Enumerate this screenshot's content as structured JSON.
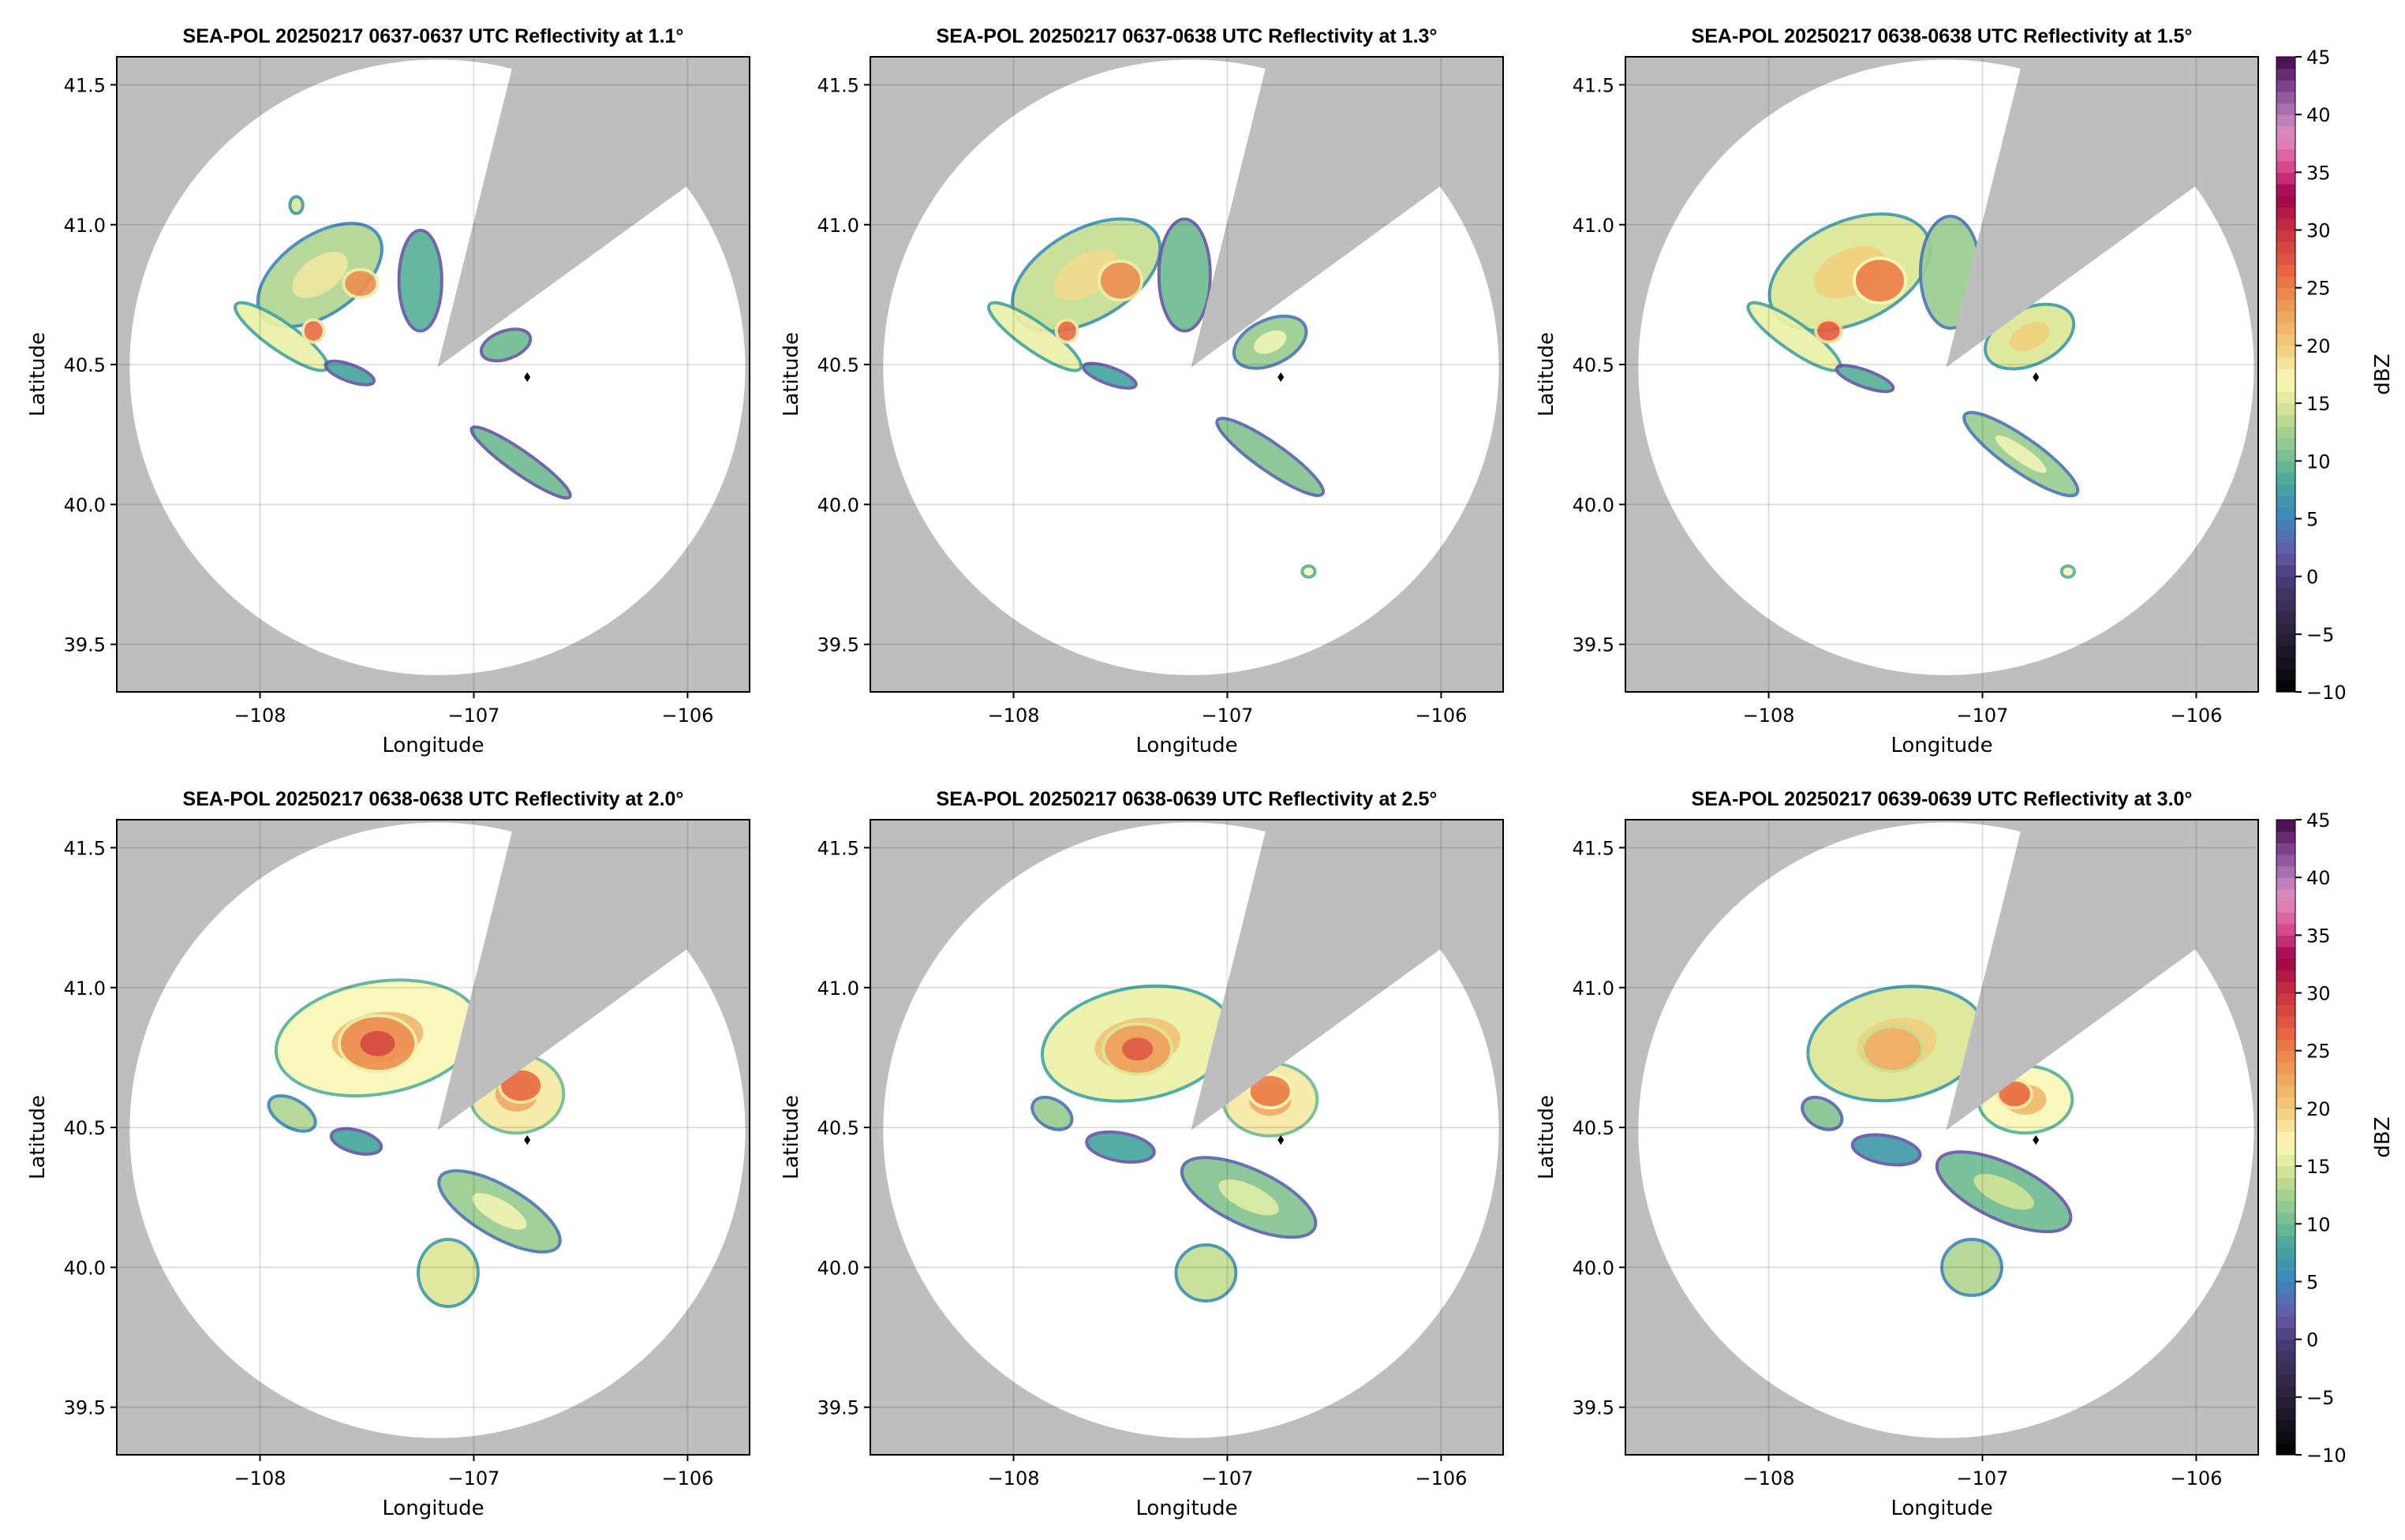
{
  "chart_data": {
    "type": "heatmap",
    "description_units": "reflectivity dBZ on lon/lat grid",
    "xlabel": "Longitude",
    "ylabel": "Latitude",
    "xlim": [
      -108.67,
      -105.71
    ],
    "ylim": [
      39.33,
      41.6
    ],
    "xticks": [
      -108,
      -107,
      -106
    ],
    "xtick_labels": [
      "−108",
      "−107",
      "−106"
    ],
    "yticks": [
      39.5,
      40.0,
      40.5,
      41.0,
      41.5
    ],
    "ytick_labels": [
      "39.5",
      "40.0",
      "40.5",
      "41.0",
      "41.5"
    ],
    "grid": true,
    "radar_center": [
      -107.17,
      40.49
    ],
    "max_range_deg_lat": 1.1,
    "blocked_azimuths_deg": [
      14,
      54
    ],
    "marker": [
      -106.75,
      40.455
    ],
    "colorbar": {
      "label": "dBZ",
      "range": [
        -10,
        45
      ],
      "ticks": [
        -10,
        -5,
        0,
        5,
        10,
        15,
        20,
        25,
        30,
        35,
        40,
        45
      ],
      "tick_labels": [
        "−10",
        "−5",
        "0",
        "5",
        "10",
        "15",
        "20",
        "25",
        "30",
        "35",
        "40",
        "45"
      ],
      "stops": [
        [
          -10,
          "#000000"
        ],
        [
          -5,
          "#2a2038"
        ],
        [
          0,
          "#4a3d78"
        ],
        [
          2,
          "#6658a8"
        ],
        [
          5,
          "#3d86bc"
        ],
        [
          8,
          "#45a59e"
        ],
        [
          10,
          "#6fbc92"
        ],
        [
          13,
          "#b0d590"
        ],
        [
          15,
          "#dce895"
        ],
        [
          17,
          "#faf8b8"
        ],
        [
          20,
          "#f2cc78"
        ],
        [
          23,
          "#eea05c"
        ],
        [
          25,
          "#ec804a"
        ],
        [
          27,
          "#e55c42"
        ],
        [
          30,
          "#c9303e"
        ],
        [
          33,
          "#a0004a"
        ],
        [
          35,
          "#d33c88"
        ],
        [
          38,
          "#e48cbd"
        ],
        [
          40,
          "#b27ab8"
        ],
        [
          42,
          "#8a4c98"
        ],
        [
          45,
          "#430848"
        ]
      ]
    },
    "panels": [
      {
        "title": "SEA-POL 20250217 0637-0637 UTC Reflectivity at 1.1°",
        "elevation": 1.1,
        "echoes": [
          [
            -107.72,
            40.82,
            0.33,
            0.14,
            -35,
            13
          ],
          [
            -107.53,
            40.79,
            0.08,
            0.05,
            0,
            24
          ],
          [
            -107.9,
            40.6,
            0.26,
            0.05,
            35,
            16
          ],
          [
            -107.75,
            40.62,
            0.05,
            0.04,
            0,
            26
          ],
          [
            -107.58,
            40.47,
            0.12,
            0.03,
            20,
            8
          ],
          [
            -107.25,
            40.8,
            0.1,
            0.18,
            0,
            9
          ],
          [
            -106.85,
            40.57,
            0.12,
            0.05,
            -20,
            10
          ],
          [
            -106.78,
            40.15,
            0.28,
            0.04,
            35,
            10
          ],
          [
            -107.83,
            41.07,
            0.03,
            0.03,
            0,
            15
          ]
        ]
      },
      {
        "title": "SEA-POL 20250217 0637-0638 UTC Reflectivity at 1.3°",
        "elevation": 1.3,
        "echoes": [
          [
            -107.66,
            40.82,
            0.38,
            0.16,
            -30,
            14
          ],
          [
            -107.5,
            40.8,
            0.1,
            0.07,
            0,
            24
          ],
          [
            -107.9,
            40.6,
            0.26,
            0.05,
            35,
            16
          ],
          [
            -107.75,
            40.62,
            0.05,
            0.04,
            0,
            26
          ],
          [
            -107.55,
            40.46,
            0.13,
            0.03,
            20,
            8
          ],
          [
            -107.2,
            40.82,
            0.12,
            0.2,
            0,
            10
          ],
          [
            -106.8,
            40.58,
            0.18,
            0.08,
            -25,
            12
          ],
          [
            -106.8,
            40.17,
            0.3,
            0.05,
            35,
            11
          ],
          [
            -106.62,
            39.76,
            0.03,
            0.02,
            0,
            17
          ]
        ]
      },
      {
        "title": "SEA-POL 20250217 0638-0638 UTC Reflectivity at 1.5°",
        "elevation": 1.5,
        "echoes": [
          [
            -107.62,
            40.83,
            0.4,
            0.18,
            -25,
            15
          ],
          [
            -107.48,
            40.8,
            0.12,
            0.08,
            0,
            25
          ],
          [
            -107.88,
            40.6,
            0.26,
            0.05,
            35,
            16
          ],
          [
            -107.72,
            40.62,
            0.06,
            0.04,
            0,
            27
          ],
          [
            -107.55,
            40.45,
            0.14,
            0.03,
            20,
            9
          ],
          [
            -107.15,
            40.83,
            0.14,
            0.2,
            0,
            12
          ],
          [
            -106.78,
            40.6,
            0.22,
            0.1,
            -25,
            15
          ],
          [
            -106.82,
            40.18,
            0.32,
            0.06,
            35,
            12
          ],
          [
            -106.6,
            39.76,
            0.03,
            0.02,
            0,
            17
          ]
        ]
      },
      {
        "title": "SEA-POL 20250217 0638-0638 UTC Reflectivity at 2.0°",
        "elevation": 2.0,
        "echoes": [
          [
            -107.45,
            40.82,
            0.48,
            0.2,
            -10,
            17
          ],
          [
            -107.45,
            40.8,
            0.18,
            0.1,
            0,
            24
          ],
          [
            -106.8,
            40.62,
            0.22,
            0.14,
            0,
            18
          ],
          [
            -106.78,
            40.65,
            0.1,
            0.06,
            0,
            26
          ],
          [
            -107.55,
            40.45,
            0.12,
            0.04,
            15,
            8
          ],
          [
            -106.88,
            40.2,
            0.32,
            0.09,
            30,
            12
          ],
          [
            -107.12,
            39.98,
            0.14,
            0.12,
            0,
            15
          ],
          [
            -107.85,
            40.55,
            0.12,
            0.05,
            30,
            13
          ]
        ]
      },
      {
        "title": "SEA-POL 20250217 0638-0639 UTC Reflectivity at 2.5°",
        "elevation": 2.5,
        "echoes": [
          [
            -107.42,
            40.8,
            0.45,
            0.2,
            -10,
            16
          ],
          [
            -107.42,
            40.78,
            0.16,
            0.09,
            0,
            23
          ],
          [
            -106.8,
            40.6,
            0.22,
            0.13,
            0,
            18
          ],
          [
            -106.8,
            40.63,
            0.1,
            0.06,
            0,
            25
          ],
          [
            -107.5,
            40.43,
            0.16,
            0.05,
            10,
            8
          ],
          [
            -106.9,
            40.25,
            0.34,
            0.1,
            25,
            11
          ],
          [
            -107.1,
            39.98,
            0.14,
            0.1,
            0,
            14
          ],
          [
            -107.82,
            40.55,
            0.1,
            0.05,
            30,
            12
          ]
        ]
      },
      {
        "title": "SEA-POL 20250217 0639-0639 UTC Reflectivity at 3.0°",
        "elevation": 3.0,
        "echoes": [
          [
            -107.4,
            40.8,
            0.42,
            0.2,
            -10,
            15
          ],
          [
            -107.42,
            40.78,
            0.14,
            0.08,
            0,
            22
          ],
          [
            -106.8,
            40.6,
            0.22,
            0.12,
            0,
            17
          ],
          [
            -106.85,
            40.62,
            0.08,
            0.05,
            0,
            26
          ],
          [
            -107.45,
            40.42,
            0.16,
            0.05,
            10,
            7
          ],
          [
            -106.9,
            40.27,
            0.34,
            0.1,
            25,
            10
          ],
          [
            -107.05,
            40.0,
            0.14,
            0.1,
            0,
            13
          ],
          [
            -107.75,
            40.55,
            0.1,
            0.05,
            30,
            11
          ]
        ]
      }
    ]
  }
}
